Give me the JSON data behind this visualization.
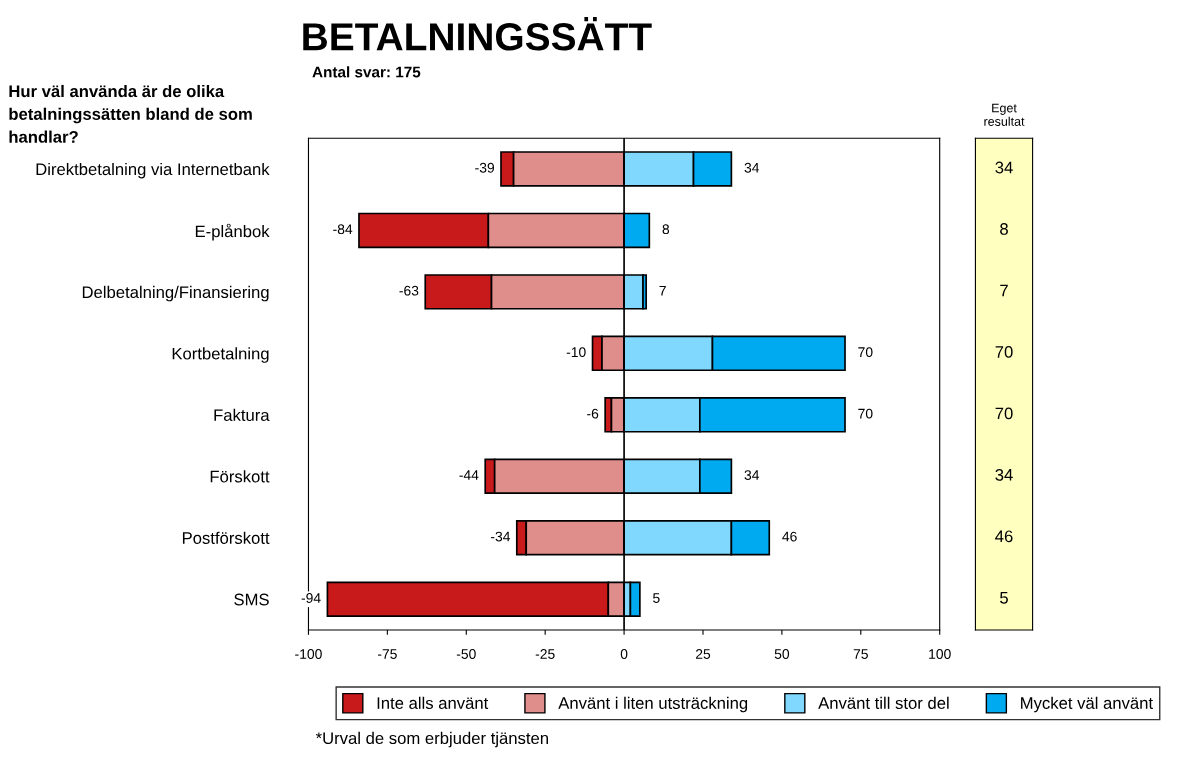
{
  "chart_data": [
    {
      "type": "bar",
      "orientation": "horizontal",
      "title": "BETALNINGSSÄTT",
      "subtitle": "Antal svar: 175",
      "categories": [
        "Direktbetalning via Internetbank",
        "E-plånbok",
        "Delbetalning/Finansiering",
        "Kortbetalning",
        "Faktura",
        "Förskott",
        "Postförskott",
        "SMS"
      ],
      "series": [
        {
          "name": "Inte alls använt",
          "color": "#c8191b",
          "base": [
            -39,
            -84,
            -63,
            -10,
            -6,
            -44,
            -34,
            -94
          ],
          "values": [
            4,
            41,
            21,
            3,
            2,
            3,
            3,
            89
          ]
        },
        {
          "name": "Använt i liten utsträckning",
          "color": "#e08e8c",
          "base": [
            -35,
            -43,
            -42,
            -7,
            -4,
            -41,
            -31,
            -5
          ],
          "values": [
            35,
            43,
            42,
            7,
            4,
            41,
            31,
            5
          ]
        },
        {
          "name": "Använt till stor del",
          "color": "#80d8ff",
          "base": [
            0,
            null,
            0,
            0,
            0,
            0,
            0,
            0
          ],
          "values": [
            22,
            null,
            6,
            28,
            24,
            24,
            34,
            2
          ]
        },
        {
          "name": "Mycket väl använt",
          "color": "#00aaf0",
          "base": [
            22,
            0,
            6,
            28,
            24,
            24,
            34,
            2
          ],
          "values": [
            12,
            8,
            1,
            42,
            46,
            10,
            12,
            3
          ]
        }
      ],
      "totals": [
        [
          "-39",
          "34"
        ],
        [
          "-84",
          "8"
        ],
        [
          "-63",
          "7"
        ],
        [
          "-10",
          "70"
        ],
        [
          "-6",
          "70"
        ],
        [
          "-44",
          "34"
        ],
        [
          "-34",
          "46"
        ],
        [
          "-94",
          "5"
        ]
      ],
      "xlim": [
        -100,
        100
      ],
      "xticks": [
        -100,
        -75,
        -50,
        -25,
        0,
        25,
        50,
        75,
        100
      ],
      "ref_lines": [
        {
          "axis": "x",
          "value": 0,
          "color": "#000000"
        }
      ],
      "legend": "bottom",
      "grid": false,
      "annotations": [
        "Hur väl använda är de olika\nbetalningssätten bland de som\nhandlar?",
        "*Urval de som erbjuder tjänsten"
      ]
    },
    {
      "type": "other",
      "title": "Eget\nresultat",
      "annotations": [
        "34",
        "8",
        "7",
        "70",
        "70",
        "34",
        "46",
        "5"
      ]
    }
  ]
}
